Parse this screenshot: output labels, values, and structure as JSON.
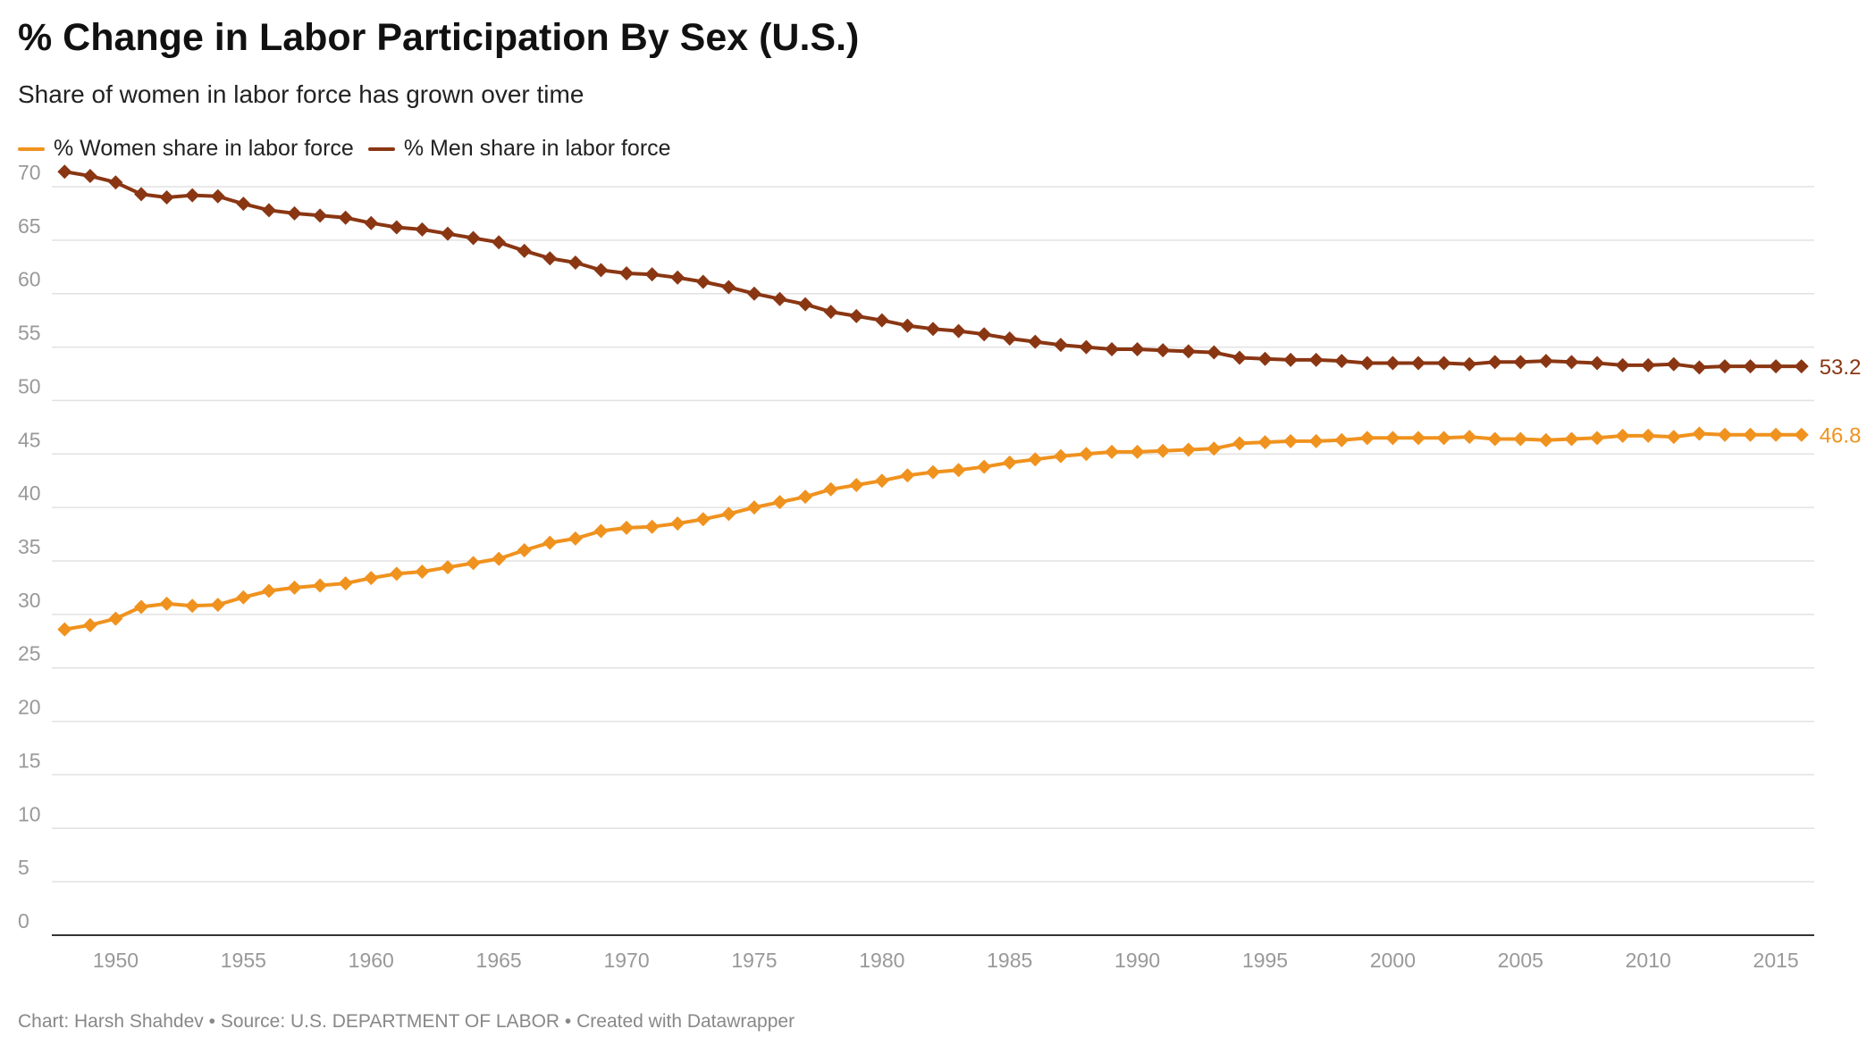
{
  "header": {
    "title": "% Change in Labor Participation By Sex (U.S.)",
    "subtitle": "Share of women in labor force has grown over time"
  },
  "footer": {
    "chart_by": "Chart: Harsh Shahdev",
    "sep1": " • ",
    "source": "Source: U.S. DEPARTMENT OF LABOR",
    "sep2": " • ",
    "created": "Created with Datawrapper"
  },
  "colors": {
    "women": "#f0921e",
    "men": "#8a3613",
    "grid": "#e2e2e2",
    "axis": "#333333",
    "tick_text": "#999999"
  },
  "chart_data": {
    "type": "line",
    "title": "% Change in Labor Participation By Sex (U.S.)",
    "subtitle": "Share of women in labor force has grown over time",
    "xlabel": "",
    "ylabel": "",
    "xlim": [
      1947.5,
      2016.5
    ],
    "ylim": [
      0,
      70
    ],
    "y_ticks": [
      0,
      5,
      10,
      15,
      20,
      25,
      30,
      35,
      40,
      45,
      50,
      55,
      60,
      65,
      70
    ],
    "x_ticks": [
      1950,
      1955,
      1960,
      1965,
      1970,
      1975,
      1980,
      1985,
      1990,
      1995,
      2000,
      2005,
      2010,
      2015
    ],
    "grid": true,
    "legend_position": "top-left",
    "x": [
      1948,
      1949,
      1950,
      1951,
      1952,
      1953,
      1954,
      1955,
      1956,
      1957,
      1958,
      1959,
      1960,
      1961,
      1962,
      1963,
      1964,
      1965,
      1966,
      1967,
      1968,
      1969,
      1970,
      1971,
      1972,
      1973,
      1974,
      1975,
      1976,
      1977,
      1978,
      1979,
      1980,
      1981,
      1982,
      1983,
      1984,
      1985,
      1986,
      1987,
      1988,
      1989,
      1990,
      1991,
      1992,
      1993,
      1994,
      1995,
      1996,
      1997,
      1998,
      1999,
      2000,
      2001,
      2002,
      2003,
      2004,
      2005,
      2006,
      2007,
      2008,
      2009,
      2010,
      2011,
      2012,
      2013,
      2014,
      2015,
      2016
    ],
    "series": [
      {
        "name": "% Women share in labor force",
        "color": "#f0921e",
        "end_label": "46.8",
        "values": [
          28.6,
          29.0,
          29.6,
          30.7,
          31.0,
          30.8,
          30.9,
          31.6,
          32.2,
          32.5,
          32.7,
          32.9,
          33.4,
          33.8,
          34.0,
          34.4,
          34.8,
          35.2,
          36.0,
          36.7,
          37.1,
          37.8,
          38.1,
          38.2,
          38.5,
          38.9,
          39.4,
          40.0,
          40.5,
          41.0,
          41.7,
          42.1,
          42.5,
          43.0,
          43.3,
          43.5,
          43.8,
          44.2,
          44.5,
          44.8,
          45.0,
          45.2,
          45.2,
          45.3,
          45.4,
          45.5,
          46.0,
          46.1,
          46.2,
          46.2,
          46.3,
          46.5,
          46.5,
          46.5,
          46.5,
          46.6,
          46.4,
          46.4,
          46.3,
          46.4,
          46.5,
          46.7,
          46.7,
          46.6,
          46.9,
          46.8,
          46.8,
          46.8,
          46.8
        ]
      },
      {
        "name": "% Men share in labor force",
        "color": "#8a3613",
        "end_label": "53.2",
        "values": [
          71.4,
          71.0,
          70.4,
          69.3,
          69.0,
          69.2,
          69.1,
          68.4,
          67.8,
          67.5,
          67.3,
          67.1,
          66.6,
          66.2,
          66.0,
          65.6,
          65.2,
          64.8,
          64.0,
          63.3,
          62.9,
          62.2,
          61.9,
          61.8,
          61.5,
          61.1,
          60.6,
          60.0,
          59.5,
          59.0,
          58.3,
          57.9,
          57.5,
          57.0,
          56.7,
          56.5,
          56.2,
          55.8,
          55.5,
          55.2,
          55.0,
          54.8,
          54.8,
          54.7,
          54.6,
          54.5,
          54.0,
          53.9,
          53.8,
          53.8,
          53.7,
          53.5,
          53.5,
          53.5,
          53.5,
          53.4,
          53.6,
          53.6,
          53.7,
          53.6,
          53.5,
          53.3,
          53.3,
          53.4,
          53.1,
          53.2,
          53.2,
          53.2,
          53.2
        ]
      }
    ]
  }
}
